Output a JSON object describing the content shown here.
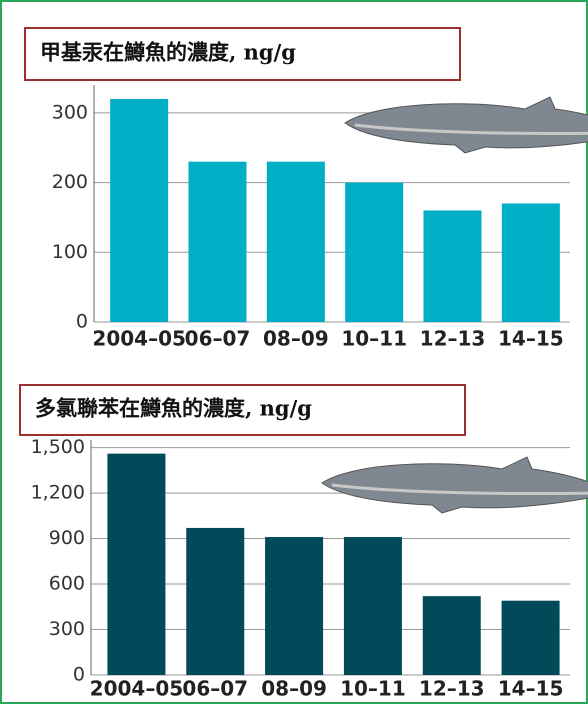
{
  "chart_data": [
    {
      "type": "bar",
      "title": "甲基汞在鱒魚的濃度, ng/g",
      "categories": [
        "2004–05",
        "06–07",
        "08–09",
        "10–11",
        "12–13",
        "14–15"
      ],
      "values": [
        320,
        230,
        230,
        200,
        160,
        170
      ],
      "color": "#00afc6",
      "ylim": [
        0,
        340
      ],
      "yticks": [
        0,
        100,
        200,
        300
      ],
      "grid": true
    },
    {
      "type": "bar",
      "title": "多氯聯苯在鱒魚的濃度, ng/g",
      "categories": [
        "2004–05",
        "06–07",
        "08–09",
        "10–11",
        "12–13",
        "14–15"
      ],
      "values": [
        1460,
        970,
        910,
        910,
        520,
        490
      ],
      "color": "#004a5a",
      "ylim": [
        0,
        1550
      ],
      "yticks": [
        0,
        300,
        600,
        900,
        {
          "value": 1200,
          "label": "1,200"
        },
        {
          "value": 1500,
          "label": "1,500"
        }
      ],
      "grid": true
    }
  ]
}
